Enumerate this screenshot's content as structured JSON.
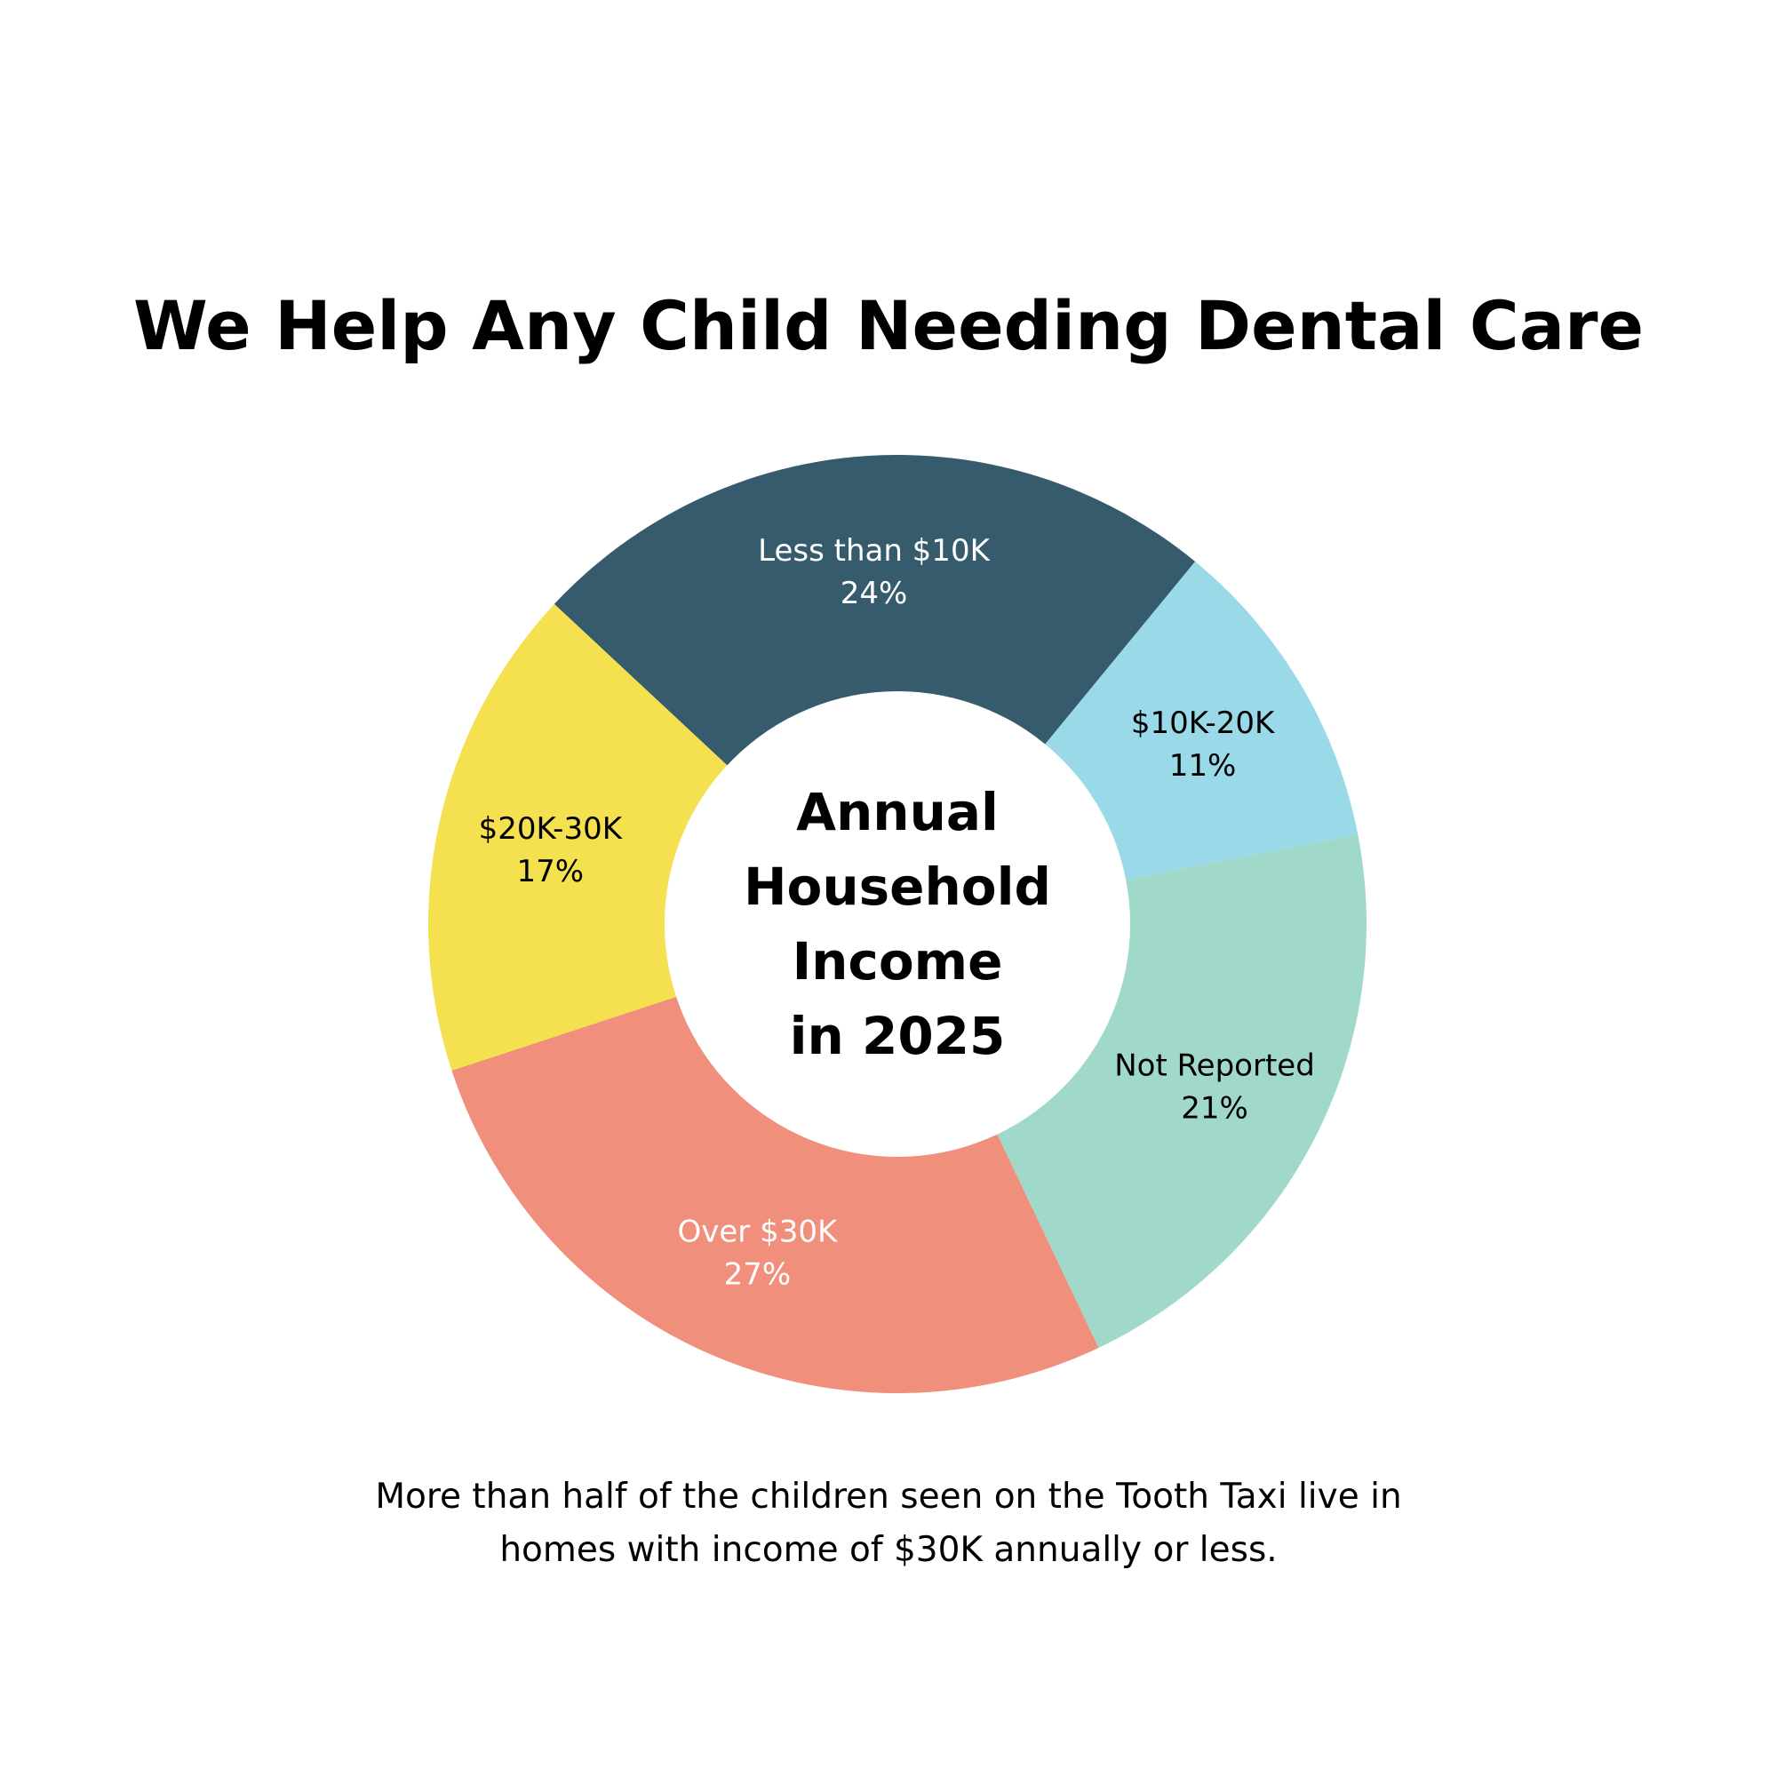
{
  "title": "We Help Any Child Needing Dental Care",
  "chart_data": {
    "type": "pie",
    "variant": "donut",
    "center_text": [
      "Annual",
      "Household",
      "Income",
      "in 2025"
    ],
    "unit": "%",
    "slices": [
      {
        "label": "Less than $10K",
        "value": 24,
        "value_label": "24%",
        "color": "#365b6d",
        "text_color": "#ffffff"
      },
      {
        "label": "$10K-20K",
        "value": 11,
        "value_label": "11%",
        "color": "#99d9e8",
        "text_color": "#000000"
      },
      {
        "label": "Not Reported",
        "value": 21,
        "value_label": "21%",
        "color": "#a0d8ca",
        "text_color": "#000000"
      },
      {
        "label": "Over $30K",
        "value": 27,
        "value_label": "27%",
        "color": "#f08f7c",
        "text_color": "#ffffff"
      },
      {
        "label": "$20K-30K",
        "value": 17,
        "value_label": "17%",
        "color": "#f5e04f",
        "text_color": "#000000"
      }
    ]
  },
  "caption": {
    "line1": "More than half of the children seen on the Tooth Taxi live in",
    "line2": "homes with income of $30K annually or less."
  }
}
